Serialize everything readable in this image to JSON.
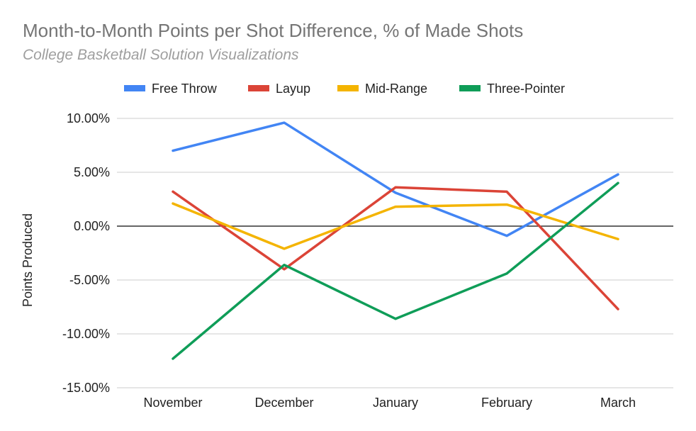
{
  "chart_data": {
    "type": "line",
    "title": "Month-to-Month Points per Shot Difference, % of Made Shots",
    "subtitle": "College Basketball Solution Visualizations",
    "xlabel": "",
    "ylabel": "Points Produced",
    "categories": [
      "November",
      "December",
      "January",
      "February",
      "March"
    ],
    "ylim": [
      -15,
      10
    ],
    "y_ticks": [
      10,
      5,
      0,
      -5,
      -10,
      -15
    ],
    "y_tick_labels": [
      "10.00%",
      "5.00%",
      "0.00%",
      "-5.00%",
      "-10.00%",
      "-15.00%"
    ],
    "grid": true,
    "legend_position": "top",
    "series": [
      {
        "name": "Free Throw",
        "color": "#4285f4",
        "values": [
          7.0,
          9.6,
          3.1,
          -0.9,
          4.8
        ]
      },
      {
        "name": "Layup",
        "color": "#db4437",
        "values": [
          3.2,
          -4.0,
          3.6,
          3.2,
          -7.7
        ]
      },
      {
        "name": "Mid-Range",
        "color": "#f4b400",
        "values": [
          2.1,
          -2.1,
          1.8,
          2.0,
          -1.2
        ]
      },
      {
        "name": "Three-Pointer",
        "color": "#0f9d58",
        "values": [
          -12.3,
          -3.6,
          -8.6,
          -4.4,
          4.0
        ]
      }
    ]
  }
}
